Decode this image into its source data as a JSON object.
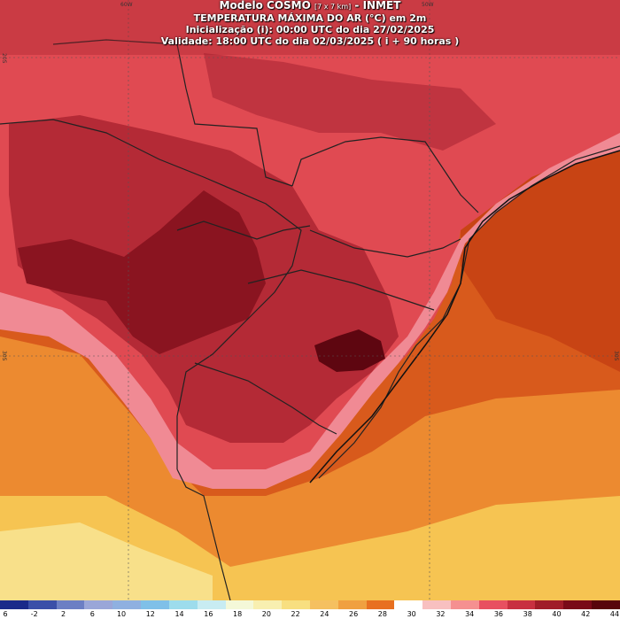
{
  "header": {
    "model": "Modelo COSMO",
    "resolution": "[7 x 7 km]",
    "agency": "- INMET",
    "variable": "TEMPERATURA MÁXIMA DO AR (°C) em 2m",
    "init": "Inicialização (i): 00:00 UTC do dia 27/02/2025",
    "valid": "Validade: 18:00 UTC do dia 02/03/2025 ( i + 90 horas )"
  },
  "grid_labels": [
    "60W",
    "50W",
    "20S",
    "30S"
  ],
  "legend": {
    "ticks": [
      "6",
      "-2",
      "2",
      "6",
      "10",
      "12",
      "14",
      "16",
      "18",
      "20",
      "22",
      "24",
      "26",
      "28",
      "30",
      "32",
      "34",
      "36",
      "38",
      "40",
      "42",
      "44"
    ],
    "colors": [
      "#1a2a8a",
      "#3a4fa8",
      "#6c7fc4",
      "#9aa6d8",
      "#8fb0e0",
      "#7fc0e8",
      "#9ddcec",
      "#c8ecf2",
      "#f4f8d8",
      "#f8efb0",
      "#f8df80",
      "#f5c060",
      "#f0a040",
      "#e87020",
      "#ffffff",
      "#f8c0c0",
      "#f59090",
      "#e85060",
      "#c83040",
      "#a01c28",
      "#7a0a18",
      "#58040c"
    ]
  },
  "colors": {
    "sea_orange": "#e8741e",
    "sea_dark": "#d0541a",
    "land_red": "#e04a52",
    "land_dark": "#a8202c",
    "land_darkest": "#6a0a14",
    "pink": "#f08a94",
    "yellow": "#f8c850"
  }
}
